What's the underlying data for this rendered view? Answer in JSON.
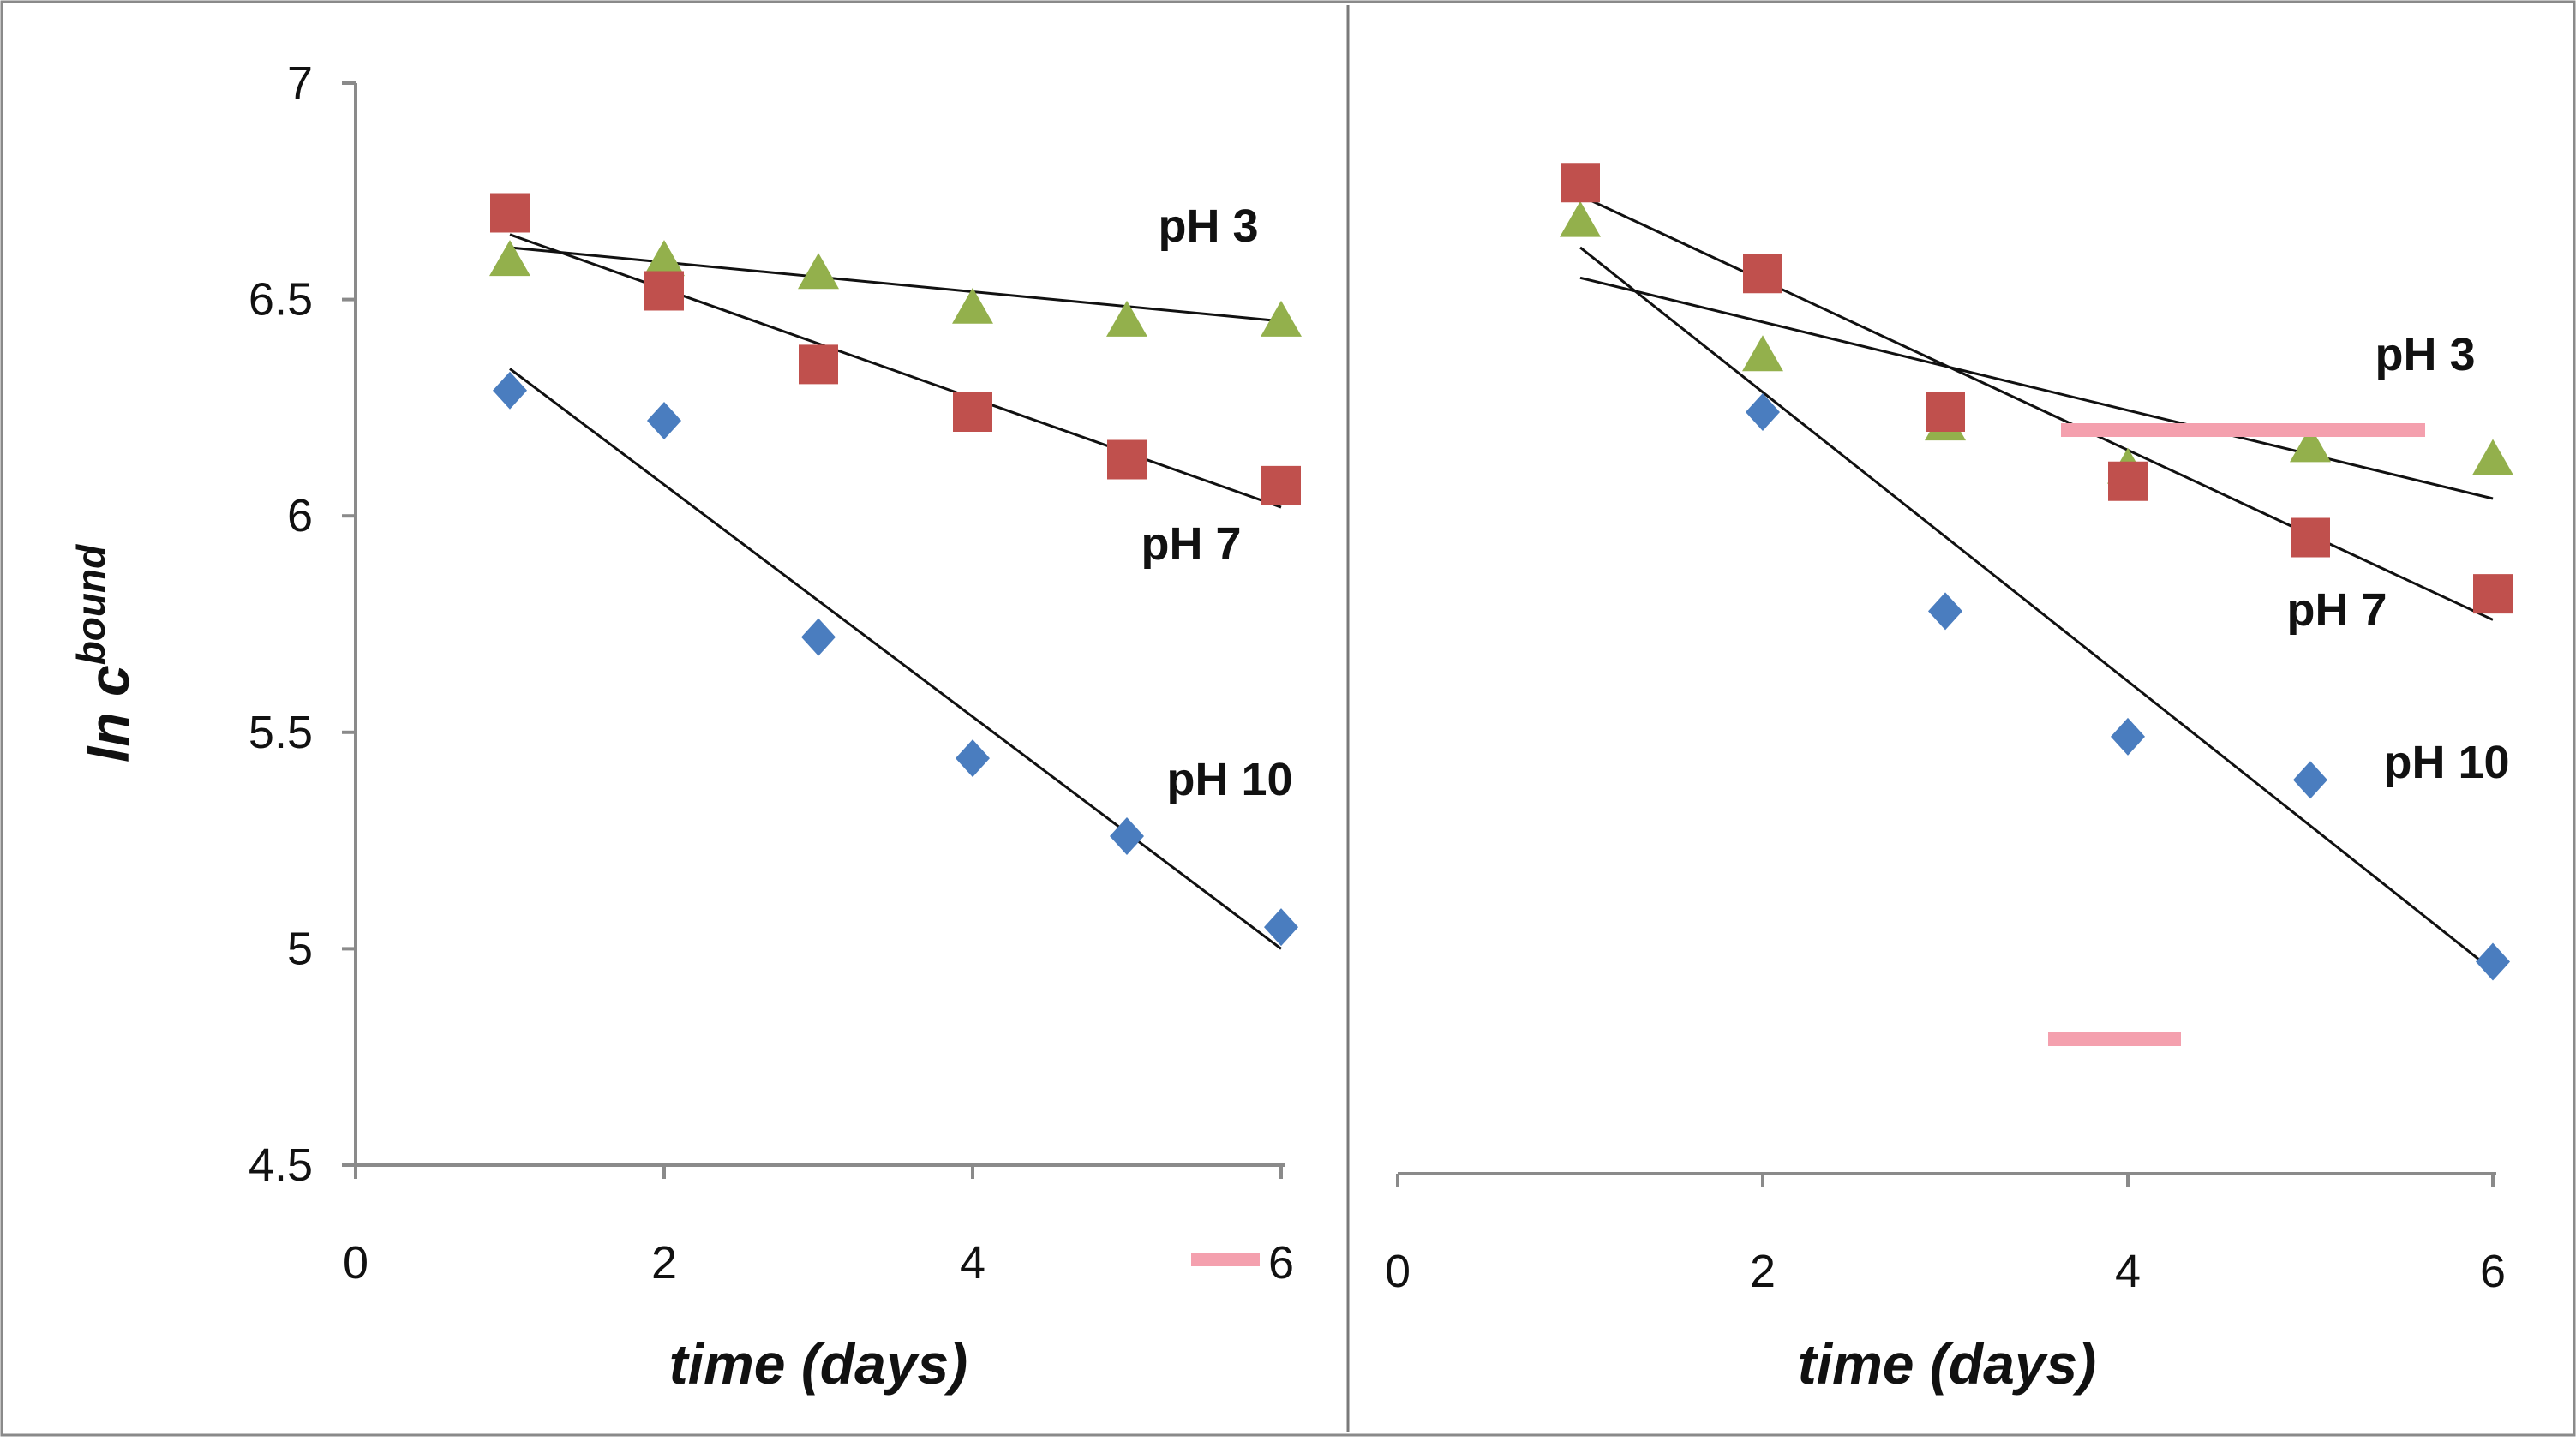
{
  "colors": {
    "pH 10": "#4a7dbf",
    "pH 7": "#c0504d",
    "pH 3": "#93b04c",
    "trend": "#111111",
    "axis": "#8a8a8a",
    "accent_dash": "#f4a0ae"
  },
  "chart_data": [
    {
      "type": "scatter",
      "panel": "left",
      "xlabel": "time (days)",
      "ylabel_main": "ln c",
      "ylabel_sup": "bound",
      "xlim": [
        0,
        6
      ],
      "ylim": [
        4.5,
        7
      ],
      "xticks": [
        "0",
        "2",
        "4",
        "6"
      ],
      "yticks": [
        "4.5",
        "5",
        "5.5",
        "6",
        "6.5",
        "7"
      ],
      "series": [
        {
          "name": "pH 3",
          "marker": "triangle",
          "x": [
            1,
            2,
            3,
            4,
            5,
            6
          ],
          "values": [
            6.59,
            6.59,
            6.56,
            6.48,
            6.45,
            6.45
          ],
          "trend": [
            [
              1,
              6.62
            ],
            [
              6,
              6.45
            ]
          ],
          "label": "pH 3"
        },
        {
          "name": "pH 7",
          "marker": "square",
          "x": [
            1,
            2,
            3,
            4,
            5,
            6
          ],
          "values": [
            6.7,
            6.52,
            6.35,
            6.24,
            6.13,
            6.07
          ],
          "trend": [
            [
              1,
              6.65
            ],
            [
              6,
              6.02
            ]
          ],
          "label": "pH 7"
        },
        {
          "name": "pH 10",
          "marker": "diamond",
          "x": [
            1,
            2,
            3,
            4,
            5,
            6
          ],
          "values": [
            6.29,
            6.22,
            5.72,
            5.44,
            5.26,
            5.05
          ],
          "trend": [
            [
              1,
              6.34
            ],
            [
              6,
              5.0
            ]
          ],
          "label": "pH 10"
        }
      ]
    },
    {
      "type": "scatter",
      "panel": "right",
      "xlabel": "time (days)",
      "xlim": [
        0,
        6
      ],
      "ylim": [
        4.5,
        7
      ],
      "xticks": [
        "0",
        "2",
        "4",
        "6"
      ],
      "series": [
        {
          "name": "pH 3",
          "marker": "triangle",
          "x": [
            1,
            2,
            3,
            4,
            5,
            6
          ],
          "values": [
            6.68,
            6.37,
            6.21,
            6.11,
            6.16,
            6.13
          ],
          "trend": [
            [
              1,
              6.55
            ],
            [
              6,
              6.04
            ]
          ],
          "label": "pH 3"
        },
        {
          "name": "pH 7",
          "marker": "square",
          "x": [
            1,
            2,
            3,
            4,
            5,
            6
          ],
          "values": [
            6.77,
            6.56,
            6.24,
            6.08,
            5.95,
            5.82
          ],
          "trend": [
            [
              1,
              6.74
            ],
            [
              6,
              5.76
            ]
          ],
          "label": "pH 7"
        },
        {
          "name": "pH 10",
          "marker": "diamond",
          "x": [
            1,
            2,
            3,
            4,
            5,
            6
          ],
          "values": [
            null,
            6.24,
            5.78,
            5.49,
            5.39,
            4.97
          ],
          "trend": [
            [
              1,
              6.62
            ],
            [
              6,
              4.95
            ]
          ],
          "label": "pH 10"
        }
      ]
    }
  ]
}
